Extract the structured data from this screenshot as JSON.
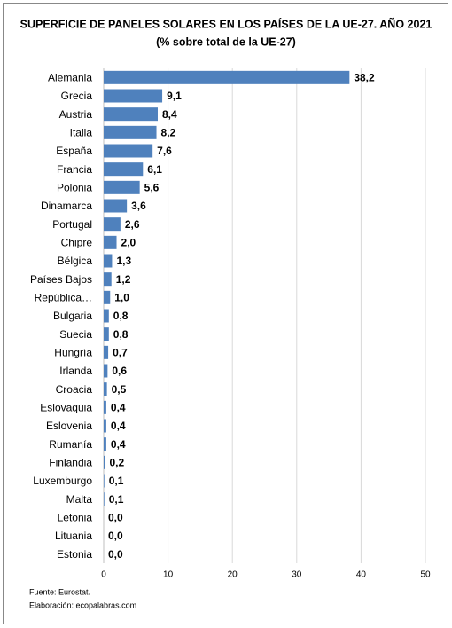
{
  "chart_data": {
    "type": "bar",
    "orientation": "horizontal",
    "title": "SUPERFICIE DE PANELES SOLARES EN LOS PAÍSES DE LA UE-27. AÑO 2021",
    "subtitle": "(% sobre total de la UE-27)",
    "categories": [
      "Alemania",
      "Grecia",
      "Austria",
      "Italia",
      "España",
      "Francia",
      "Polonia",
      "Dinamarca",
      "Portugal",
      "Chipre",
      "Bélgica",
      "Países Bajos",
      "República…",
      "Bulgaria",
      "Suecia",
      "Hungría",
      "Irlanda",
      "Croacia",
      "Eslovaquia",
      "Eslovenia",
      "Rumanía",
      "Finlandia",
      "Luxemburgo",
      "Malta",
      "Letonia",
      "Lituania",
      "Estonia"
    ],
    "values": [
      38.2,
      9.1,
      8.4,
      8.2,
      7.6,
      6.1,
      5.6,
      3.6,
      2.6,
      2.0,
      1.3,
      1.2,
      1.0,
      0.8,
      0.8,
      0.7,
      0.6,
      0.5,
      0.4,
      0.4,
      0.4,
      0.2,
      0.1,
      0.1,
      0.0,
      0.0,
      0.0
    ],
    "value_labels": [
      "38,2",
      "9,1",
      "8,4",
      "8,2",
      "7,6",
      "6,1",
      "5,6",
      "3,6",
      "2,6",
      "2,0",
      "1,3",
      "1,2",
      "1,0",
      "0,8",
      "0,8",
      "0,7",
      "0,6",
      "0,5",
      "0,4",
      "0,4",
      "0,4",
      "0,2",
      "0,1",
      "0,1",
      "0,0",
      "0,0",
      "0,0"
    ],
    "color": "#4f81bd",
    "xlim": [
      0,
      50
    ],
    "xticks": [
      0,
      10,
      20,
      30,
      40,
      50
    ],
    "grid": true,
    "source": [
      "Fuente: Eurostat.",
      "Elaboración: ecopalabras.com"
    ]
  }
}
